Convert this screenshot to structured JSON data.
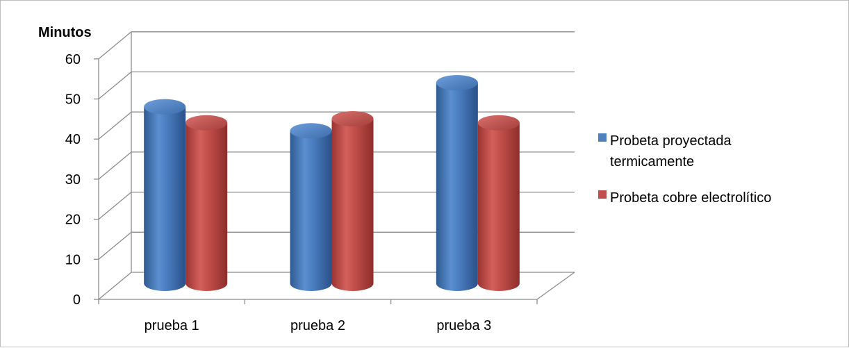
{
  "chart_data": {
    "type": "bar",
    "variant": "3d-cylinder",
    "title": "",
    "ylabel": "Minutos",
    "xlabel": "",
    "ylim": [
      0,
      60
    ],
    "yticks": [
      "0",
      "10",
      "20",
      "30",
      "40",
      "50",
      "60"
    ],
    "categories": [
      "prueba 1",
      "prueba 2",
      "prueba 3"
    ],
    "series": [
      {
        "name": "Probeta proyectada termicamente",
        "values": [
          44,
          38,
          50
        ],
        "color": "#4f81bd"
      },
      {
        "name": "Probeta cobre electrolítico",
        "values": [
          40,
          41,
          40
        ],
        "color": "#c0504d"
      }
    ],
    "legend": {
      "position": "right",
      "entries": [
        {
          "lines": [
            "Probeta proyectada",
            "termicamente"
          ]
        },
        {
          "lines": [
            "Probeta cobre electrolítico"
          ]
        }
      ]
    },
    "grid": true
  }
}
